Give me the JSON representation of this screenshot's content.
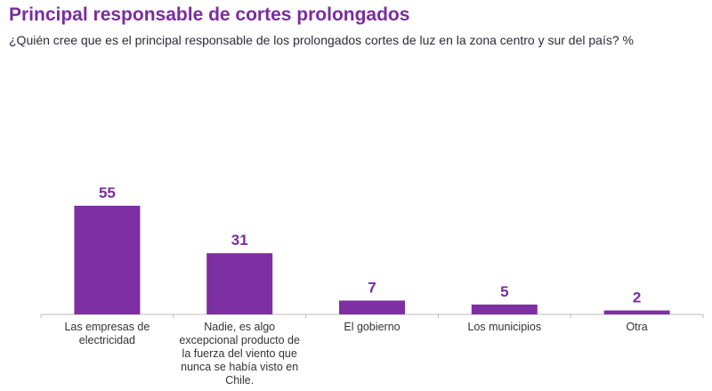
{
  "title": "Principal responsable de cortes prolongados",
  "subtitle": "¿Quién cree que es el principal responsable de los prolongados cortes de luz en la zona centro y sur del país? %",
  "chart_data": {
    "type": "bar",
    "title": "Principal responsable de cortes prolongados",
    "categories": [
      "Las empresas de electricidad",
      "Nadie, es algo excepcional producto de la fuerza del viento que nunca se había visto en Chile.",
      "El gobierno",
      "Los municipios",
      "Otra"
    ],
    "values": [
      55,
      31,
      7,
      5,
      2
    ],
    "ylim": [
      0,
      55
    ],
    "grid": false,
    "bar_color": "#7e2fa3",
    "label_color": "#7a2c9e"
  }
}
